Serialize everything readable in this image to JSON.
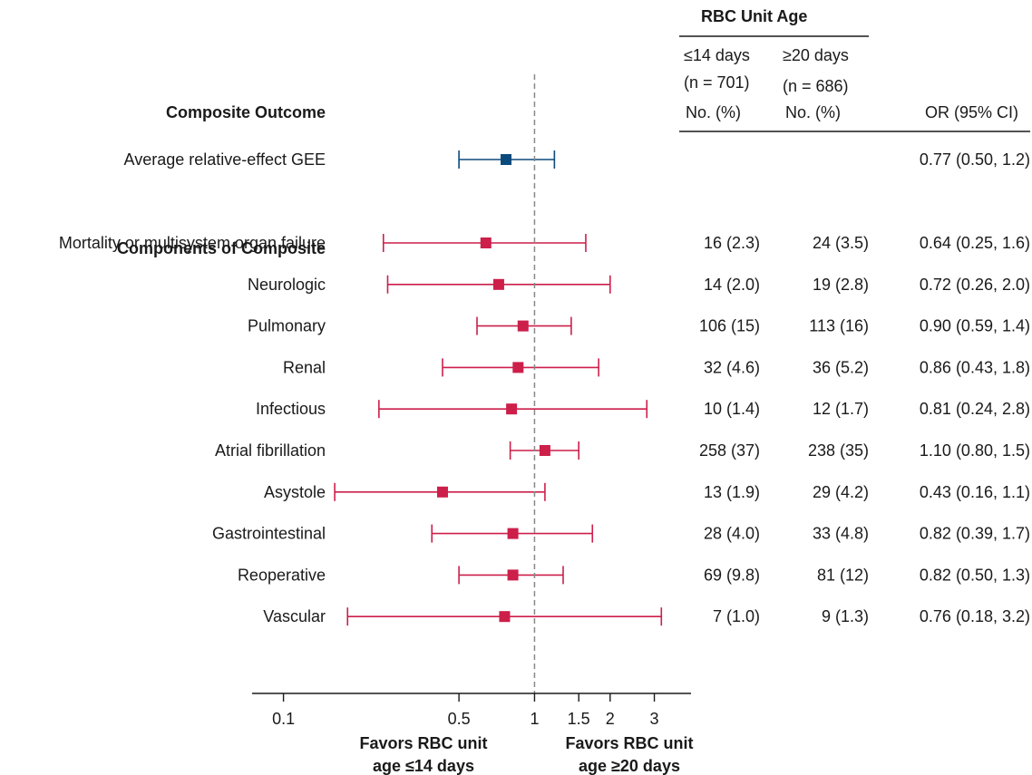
{
  "chart_data": {
    "type": "forest",
    "column_group_header": "RBC Unit Age",
    "col1_header": {
      "line1": "≤14 days",
      "line2": "(n = 701)",
      "line3": "No. (%)"
    },
    "col2_header": {
      "line1": "≥20 days",
      "line2": "(n = 686)",
      "line3": "No. (%)"
    },
    "or_header": "OR (95% CI)",
    "section_titles": {
      "composite": "Composite Outcome",
      "components": "Components of Composite"
    },
    "reference_line": 1,
    "x_scale": "log",
    "xlim": [
      0.075,
      4.2
    ],
    "x_ticks": [
      {
        "value": 0.1,
        "label": "0.1"
      },
      {
        "value": 0.5,
        "label": "0.5"
      },
      {
        "value": 1,
        "label": "1"
      },
      {
        "value": 1.5,
        "label": "1.5"
      },
      {
        "value": 2,
        "label": "2"
      },
      {
        "value": 3,
        "label": "3"
      }
    ],
    "favors_left": {
      "line1": "Favors RBC unit",
      "line2": "age ≤14 days"
    },
    "favors_right": {
      "line1": "Favors RBC unit",
      "line2": "age ≥20 days"
    },
    "colors": {
      "composite": "#0b4a7d",
      "component": "#cc1f4a",
      "reference": "#888888"
    },
    "composite": [
      {
        "label": "Average relative-effect GEE",
        "or": 0.77,
        "lower": 0.5,
        "upper": 1.2,
        "n1": "",
        "n2": "",
        "or_text": "0.77 (0.50, 1.2)"
      }
    ],
    "components": [
      {
        "label": "Mortality or multisystem organ failure",
        "or": 0.64,
        "lower": 0.25,
        "upper": 1.6,
        "n1": "16 (2.3)",
        "n2": "24 (3.5)",
        "or_text": "0.64 (0.25, 1.6)"
      },
      {
        "label": "Neurologic",
        "or": 0.72,
        "lower": 0.26,
        "upper": 2.0,
        "n1": "14 (2.0)",
        "n2": "19 (2.8)",
        "or_text": "0.72 (0.26, 2.0)"
      },
      {
        "label": "Pulmonary",
        "or": 0.9,
        "lower": 0.59,
        "upper": 1.4,
        "n1": "106 (15)",
        "n2": "113 (16)",
        "or_text": "0.90 (0.59, 1.4)"
      },
      {
        "label": "Renal",
        "or": 0.86,
        "lower": 0.43,
        "upper": 1.8,
        "n1": "32 (4.6)",
        "n2": "36 (5.2)",
        "or_text": "0.86 (0.43, 1.8)"
      },
      {
        "label": "Infectious",
        "or": 0.81,
        "lower": 0.24,
        "upper": 2.8,
        "n1": "10 (1.4)",
        "n2": "12 (1.7)",
        "or_text": "0.81 (0.24, 2.8)"
      },
      {
        "label": "Atrial fibrillation",
        "or": 1.1,
        "lower": 0.8,
        "upper": 1.5,
        "n1": "258 (37)",
        "n2": "238 (35)",
        "or_text": "1.10 (0.80, 1.5)"
      },
      {
        "label": "Asystole",
        "or": 0.43,
        "lower": 0.16,
        "upper": 1.1,
        "n1": "13 (1.9)",
        "n2": "29 (4.2)",
        "or_text": "0.43 (0.16, 1.1)"
      },
      {
        "label": "Gastrointestinal",
        "or": 0.82,
        "lower": 0.39,
        "upper": 1.7,
        "n1": "28 (4.0)",
        "n2": "33 (4.8)",
        "or_text": "0.82 (0.39, 1.7)"
      },
      {
        "label": "Reoperative",
        "or": 0.82,
        "lower": 0.5,
        "upper": 1.3,
        "n1": "69 (9.8)",
        "n2": "81 (12)",
        "or_text": "0.82 (0.50, 1.3)"
      },
      {
        "label": "Vascular",
        "or": 0.76,
        "lower": 0.18,
        "upper": 3.2,
        "n1": "7 (1.0)",
        "n2": "9 (1.3)",
        "or_text": "0.76 (0.18, 3.2)"
      }
    ]
  }
}
